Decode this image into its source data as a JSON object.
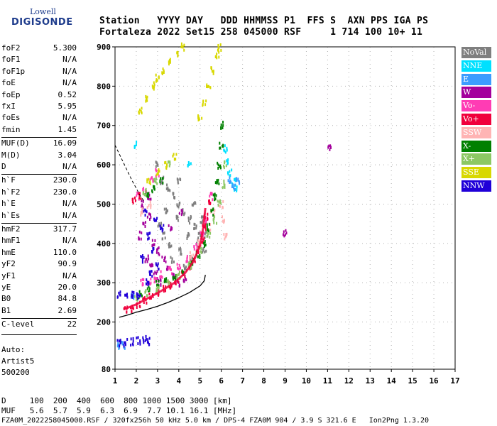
{
  "logo": {
    "line1": "Lowell",
    "line2": "DIGISONDE"
  },
  "header": {
    "row1": "Station   YYYY DAY   DDD HHMMSS P1  FFS S  AXN PPS IGA PS",
    "row2": "Fortaleza 2022 Set15 258 045000 RSF     1 714 100 10+ 11"
  },
  "params": [
    {
      "name": "foF2",
      "value": "5.300"
    },
    {
      "name": "foF1",
      "value": "N/A"
    },
    {
      "name": "foF1p",
      "value": "N/A"
    },
    {
      "name": "foE",
      "value": "N/A"
    },
    {
      "name": "foEp",
      "value": "0.52"
    },
    {
      "name": "fxI",
      "value": "5.95"
    },
    {
      "name": "foEs",
      "value": "N/A"
    },
    {
      "name": "fmin",
      "value": "1.45"
    },
    {
      "name": "MUF(D)",
      "value": "16.09"
    },
    {
      "name": "M(D)",
      "value": "3.04"
    },
    {
      "name": "D",
      "value": "N/A"
    },
    {
      "name": "h`F",
      "value": "230.0"
    },
    {
      "name": "h`F2",
      "value": "230.0"
    },
    {
      "name": "h`E",
      "value": "N/A"
    },
    {
      "name": "h`Es",
      "value": "N/A"
    },
    {
      "name": "hmF2",
      "value": "317.7"
    },
    {
      "name": "hmF1",
      "value": "N/A"
    },
    {
      "name": "hmE",
      "value": "110.0"
    },
    {
      "name": "yF2",
      "value": "90.9"
    },
    {
      "name": "yF1",
      "value": "N/A"
    },
    {
      "name": "yE",
      "value": "20.0"
    },
    {
      "name": "B0",
      "value": "84.8"
    },
    {
      "name": "B1",
      "value": "2.69"
    },
    {
      "name": "C-level",
      "value": "22"
    }
  ],
  "autoscaler": {
    "label": "Auto:",
    "name": "Artist5",
    "id": "500200"
  },
  "legend": [
    {
      "label": "NoVal",
      "color": "#7f7f7f"
    },
    {
      "label": "NNE",
      "color": "#00e0ff"
    },
    {
      "label": "E",
      "color": "#3c9cff"
    },
    {
      "label": "W",
      "color": "#a4009c"
    },
    {
      "label": "Vo-",
      "color": "#ff3cb4"
    },
    {
      "label": "Vo+",
      "color": "#f0003c"
    },
    {
      "label": "SSW",
      "color": "#ffb4b4"
    },
    {
      "label": "X-",
      "color": "#008000"
    },
    {
      "label": "X+",
      "color": "#8cc864"
    },
    {
      "label": "SSE",
      "color": "#d8d800"
    },
    {
      "label": "NNW",
      "color": "#2000d8"
    }
  ],
  "footer": {
    "row1": "D     100  200  400  600  800 1000 1500 3000 [km]",
    "row2": "MUF   5.6  5.7  5.9  6.3  6.9  7.7 10.1 16.1 [MHz]",
    "row3": "FZA0M_2022258045000.RSF / 320fx256h 50 kHz 5.0 km / DPS-4 FZA0M 904 / 3.9 S 321.6 E   Ion2Png 1.3.20"
  },
  "chart_data": {
    "type": "scatter",
    "title": "",
    "xlabel": "",
    "ylabel": "",
    "xlim": [
      1,
      17
    ],
    "ylim": [
      80,
      900
    ],
    "xticks": [
      1,
      2,
      3,
      4,
      5,
      6,
      7,
      8,
      9,
      10,
      11,
      12,
      13,
      14,
      15,
      16,
      17
    ],
    "yticks": [
      80,
      200,
      300,
      400,
      500,
      600,
      700,
      800,
      900
    ],
    "grid": true,
    "legend_position": "right",
    "series": [
      {
        "name": "NoVal",
        "color": "#7f7f7f",
        "points": [
          [
            3.0,
            600
          ],
          [
            3.2,
            560
          ],
          [
            3.5,
            540
          ],
          [
            3.8,
            520
          ],
          [
            4.0,
            500
          ],
          [
            4.2,
            480
          ],
          [
            4.5,
            460
          ],
          [
            4.8,
            440
          ],
          [
            5.0,
            420
          ],
          [
            3.3,
            420
          ],
          [
            3.6,
            400
          ],
          [
            4.1,
            380
          ],
          [
            4.6,
            360
          ],
          [
            3.4,
            480
          ],
          [
            3.9,
            460
          ],
          [
            4.4,
            420
          ],
          [
            4.9,
            400
          ],
          [
            5.2,
            380
          ],
          [
            3.1,
            450
          ],
          [
            3.7,
            360
          ],
          [
            4.3,
            340
          ],
          [
            5.3,
            420
          ],
          [
            4.0,
            560
          ],
          [
            4.7,
            500
          ],
          [
            5.1,
            460
          ]
        ]
      },
      {
        "name": "NNE",
        "color": "#00e0ff",
        "points": [
          [
            6.2,
            640
          ],
          [
            6.3,
            610
          ],
          [
            6.4,
            580
          ],
          [
            6.6,
            555
          ],
          [
            6.7,
            540
          ],
          [
            2.0,
            650
          ],
          [
            4.5,
            600
          ]
        ]
      },
      {
        "name": "E",
        "color": "#3c9cff",
        "points": [
          [
            6.4,
            560
          ],
          [
            6.6,
            545
          ],
          [
            6.8,
            560
          ],
          [
            1.8,
            265
          ],
          [
            1.2,
            140
          ],
          [
            1.4,
            140
          ]
        ]
      },
      {
        "name": "W",
        "color": "#a4009c",
        "points": [
          [
            2.2,
            420
          ],
          [
            2.4,
            450
          ],
          [
            2.6,
            470
          ],
          [
            2.8,
            400
          ],
          [
            3.0,
            380
          ],
          [
            3.3,
            360
          ],
          [
            3.5,
            340
          ],
          [
            3.8,
            320
          ],
          [
            2.5,
            360
          ],
          [
            2.7,
            340
          ],
          [
            2.9,
            320
          ],
          [
            3.1,
            300
          ],
          [
            4.0,
            300
          ],
          [
            4.3,
            310
          ],
          [
            2.3,
            500
          ],
          [
            2.6,
            520
          ],
          [
            11.1,
            640
          ],
          [
            9.0,
            425
          ],
          [
            4.1,
            480
          ],
          [
            3.6,
            440
          ]
        ]
      },
      {
        "name": "Vo-",
        "color": "#ff3cb4",
        "points": [
          [
            2.3,
            300
          ],
          [
            2.6,
            305
          ],
          [
            2.9,
            310
          ],
          [
            3.2,
            320
          ],
          [
            3.6,
            330
          ],
          [
            4.0,
            340
          ],
          [
            4.4,
            360
          ],
          [
            4.8,
            390
          ],
          [
            5.1,
            420
          ],
          [
            5.3,
            460
          ],
          [
            5.5,
            520
          ],
          [
            2.1,
            520
          ],
          [
            2.4,
            540
          ],
          [
            2.7,
            560
          ],
          [
            3.0,
            580
          ]
        ]
      },
      {
        "name": "Vo+",
        "color": "#f0003c",
        "points": [
          [
            1.5,
            230
          ],
          [
            1.8,
            235
          ],
          [
            2.1,
            245
          ],
          [
            2.4,
            255
          ],
          [
            2.7,
            265
          ],
          [
            3.0,
            275
          ],
          [
            3.3,
            285
          ],
          [
            3.6,
            295
          ],
          [
            3.9,
            305
          ],
          [
            4.2,
            320
          ],
          [
            4.5,
            340
          ],
          [
            4.7,
            360
          ],
          [
            4.9,
            385
          ],
          [
            5.1,
            410
          ],
          [
            5.2,
            440
          ],
          [
            5.3,
            470
          ],
          [
            5.4,
            500
          ],
          [
            1.9,
            510
          ],
          [
            2.2,
            520
          ]
        ]
      },
      {
        "name": "SSW",
        "color": "#ffb4b4",
        "points": [
          [
            4.6,
            370
          ],
          [
            5.0,
            400
          ],
          [
            5.4,
            440
          ],
          [
            5.6,
            480
          ],
          [
            6.0,
            500
          ],
          [
            6.1,
            460
          ],
          [
            6.2,
            420
          ],
          [
            2.3,
            480
          ],
          [
            2.6,
            500
          ]
        ]
      },
      {
        "name": "X-",
        "color": "#008000",
        "points": [
          [
            2.2,
            270
          ],
          [
            2.6,
            285
          ],
          [
            3.0,
            295
          ],
          [
            3.4,
            305
          ],
          [
            3.8,
            315
          ],
          [
            4.2,
            330
          ],
          [
            4.6,
            350
          ],
          [
            4.9,
            370
          ],
          [
            5.2,
            400
          ],
          [
            5.4,
            440
          ],
          [
            5.6,
            480
          ],
          [
            5.7,
            520
          ],
          [
            5.8,
            560
          ],
          [
            5.9,
            600
          ],
          [
            6.0,
            650
          ],
          [
            6.0,
            700
          ],
          [
            2.5,
            520
          ],
          [
            2.8,
            540
          ],
          [
            3.2,
            560
          ]
        ]
      },
      {
        "name": "X+",
        "color": "#8cc864",
        "points": [
          [
            2.0,
            260
          ],
          [
            2.5,
            275
          ],
          [
            3.0,
            285
          ],
          [
            3.5,
            300
          ],
          [
            4.0,
            320
          ],
          [
            4.5,
            345
          ],
          [
            5.0,
            380
          ],
          [
            5.4,
            420
          ],
          [
            5.7,
            460
          ],
          [
            5.9,
            500
          ],
          [
            6.1,
            550
          ],
          [
            6.2,
            600
          ],
          [
            2.4,
            530
          ],
          [
            2.9,
            560
          ],
          [
            3.5,
            600
          ]
        ]
      },
      {
        "name": "SSE",
        "color": "#d8d800",
        "points": [
          [
            2.2,
            740
          ],
          [
            2.5,
            770
          ],
          [
            2.8,
            800
          ],
          [
            3.0,
            820
          ],
          [
            3.3,
            840
          ],
          [
            3.6,
            860
          ],
          [
            3.9,
            880
          ],
          [
            4.2,
            900
          ],
          [
            5.0,
            720
          ],
          [
            5.2,
            760
          ],
          [
            5.4,
            800
          ],
          [
            5.6,
            840
          ],
          [
            5.8,
            880
          ],
          [
            5.9,
            900
          ],
          [
            2.6,
            560
          ],
          [
            3.0,
            580
          ],
          [
            3.4,
            600
          ],
          [
            3.8,
            620
          ]
        ]
      },
      {
        "name": "NNW",
        "color": "#2000d8",
        "points": [
          [
            1.2,
            268
          ],
          [
            1.5,
            268
          ],
          [
            1.8,
            270
          ],
          [
            2.1,
            268
          ],
          [
            1.2,
            145
          ],
          [
            1.5,
            147
          ],
          [
            1.8,
            150
          ],
          [
            2.1,
            152
          ],
          [
            2.4,
            155
          ],
          [
            2.6,
            150
          ],
          [
            2.4,
            480
          ],
          [
            2.6,
            420
          ],
          [
            2.8,
            380
          ],
          [
            3.0,
            340
          ],
          [
            2.3,
            360
          ],
          [
            2.5,
            300
          ],
          [
            2.7,
            320
          ],
          [
            3.2,
            440
          ],
          [
            2.9,
            460
          ]
        ]
      }
    ],
    "profile_curve": [
      [
        1.2,
        212
      ],
      [
        1.6,
        218
      ],
      [
        2.0,
        225
      ],
      [
        2.5,
        232
      ],
      [
        3.0,
        240
      ],
      [
        3.5,
        250
      ],
      [
        4.0,
        262
      ],
      [
        4.5,
        275
      ],
      [
        5.0,
        292
      ],
      [
        5.2,
        305
      ],
      [
        5.25,
        320
      ]
    ],
    "dashed_curve": [
      [
        1.0,
        650
      ],
      [
        1.4,
        605
      ],
      [
        1.8,
        560
      ],
      [
        2.2,
        520
      ],
      [
        2.4,
        505
      ]
    ],
    "leading_edge": [
      [
        1.4,
        232
      ],
      [
        2.0,
        245
      ],
      [
        2.6,
        262
      ],
      [
        3.2,
        280
      ],
      [
        3.8,
        300
      ],
      [
        4.3,
        325
      ],
      [
        4.7,
        355
      ],
      [
        5.0,
        395
      ],
      [
        5.15,
        440
      ],
      [
        5.25,
        490
      ]
    ]
  }
}
